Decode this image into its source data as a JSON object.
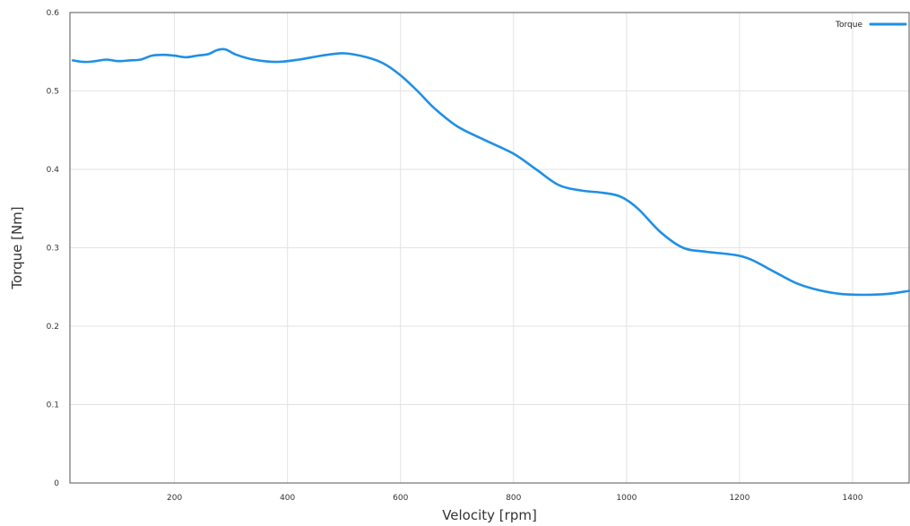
{
  "chart_data": {
    "type": "line",
    "title": "",
    "xlabel": "Velocity [rpm]",
    "ylabel": "Torque [Nm]",
    "xlim": [
      15,
      1500
    ],
    "ylim": [
      0,
      0.6
    ],
    "x_ticks": [
      200,
      400,
      600,
      800,
      1000,
      1200,
      1400
    ],
    "x_tick_labels": [
      "200",
      "400",
      "600",
      "800",
      "1000",
      "1200",
      "1400"
    ],
    "y_ticks": [
      0,
      0.1,
      0.2,
      0.3,
      0.4,
      0.5,
      0.6
    ],
    "y_tick_labels": [
      "0",
      "0.1",
      "0.2",
      "0.3",
      "0.4",
      "0.5",
      "0.6"
    ],
    "grid": true,
    "legend_position": "top-right",
    "colors": {
      "line": "#1f8fe6",
      "grid": "#e3e3e3",
      "axis": "#555555"
    },
    "series": [
      {
        "name": "Torque",
        "x": [
          20,
          40,
          60,
          80,
          100,
          120,
          140,
          160,
          180,
          200,
          220,
          240,
          260,
          275,
          290,
          310,
          340,
          380,
          420,
          460,
          500,
          540,
          570,
          600,
          630,
          660,
          700,
          750,
          800,
          840,
          880,
          920,
          960,
          990,
          1020,
          1060,
          1100,
          1140,
          1190,
          1220,
          1260,
          1300,
          1340,
          1380,
          1420,
          1460,
          1500
        ],
        "values": [
          0.539,
          0.537,
          0.538,
          0.54,
          0.538,
          0.539,
          0.54,
          0.545,
          0.546,
          0.545,
          0.543,
          0.545,
          0.547,
          0.552,
          0.553,
          0.546,
          0.54,
          0.537,
          0.54,
          0.545,
          0.548,
          0.543,
          0.535,
          0.52,
          0.5,
          0.478,
          0.455,
          0.437,
          0.42,
          0.4,
          0.38,
          0.373,
          0.37,
          0.365,
          0.35,
          0.32,
          0.3,
          0.295,
          0.291,
          0.285,
          0.27,
          0.255,
          0.246,
          0.241,
          0.24,
          0.241,
          0.245
        ]
      }
    ]
  }
}
